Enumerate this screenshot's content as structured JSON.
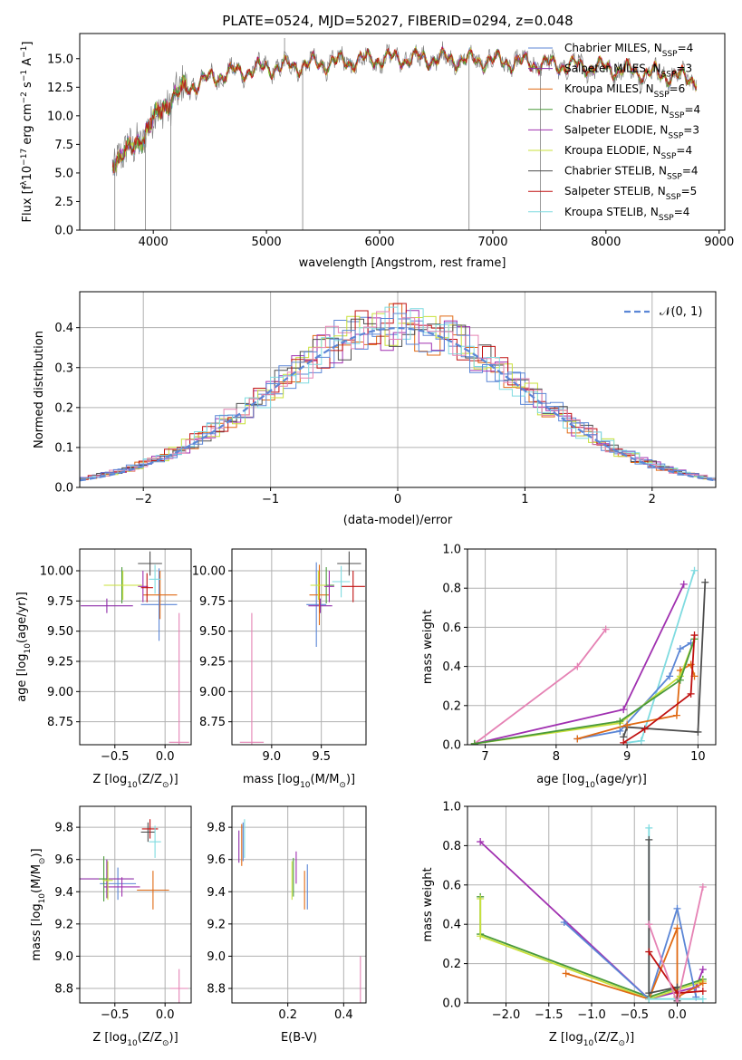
{
  "colors": {
    "chabrier_miles": "#5b86d6",
    "salpeter_miles": "#8e2da8",
    "kroupa_miles": "#e06a14",
    "chabrier_elodie": "#4a9a3a",
    "salpeter_elodie": "#a030b0",
    "kroupa_elodie": "#c8e03a",
    "chabrier_stelib": "#4d4d4d",
    "salpeter_stelib": "#c01010",
    "kroupa_stelib": "#7fdbe0",
    "pink": "#e582b4",
    "grey_spectrum": "#808080",
    "gaussian": "#5b86d6",
    "grid": "#b0b0b0"
  },
  "chart_data": [
    {
      "type": "line",
      "title": "PLATE=0524, MJD=52027, FIBERID=0294, z=0.048",
      "xlabel": "wavelength [Angstrom, rest frame]",
      "ylabel_parts": [
        "Flux [f",
        "λ",
        "10",
        "−17",
        " erg cm",
        "−2",
        " s",
        "−1",
        " A",
        "−1",
        "]"
      ],
      "xlim": [
        3350,
        9050
      ],
      "ylim": [
        0,
        17.2
      ],
      "xticks": [
        4000,
        5000,
        6000,
        7000,
        8000,
        9000
      ],
      "yticks": [
        0.0,
        2.5,
        5.0,
        7.5,
        10.0,
        12.5,
        15.0
      ],
      "grid": false,
      "legend_position": "top-right",
      "legend": [
        {
          "main": "Chabrier MILES, N",
          "sub": "SSP",
          "tail": "=4",
          "color_key": "chabrier_miles"
        },
        {
          "main": "Salpeter MILES, N",
          "sub": "SSP",
          "tail": "=3",
          "color_key": "salpeter_miles"
        },
        {
          "main": "Kroupa MILES, N",
          "sub": "SSP",
          "tail": "=6",
          "color_key": "kroupa_miles"
        },
        {
          "main": "Chabrier ELODIE, N",
          "sub": "SSP",
          "tail": "=4",
          "color_key": "chabrier_elodie"
        },
        {
          "main": "Salpeter ELODIE, N",
          "sub": "SSP",
          "tail": "=3",
          "color_key": "salpeter_elodie"
        },
        {
          "main": "Kroupa ELODIE, N",
          "sub": "SSP",
          "tail": "=4",
          "color_key": "kroupa_elodie"
        },
        {
          "main": "Chabrier STELIB, N",
          "sub": "SSP",
          "tail": "=4",
          "color_key": "chabrier_stelib"
        },
        {
          "main": "Salpeter STELIB, N",
          "sub": "SSP",
          "tail": "=5",
          "color_key": "salpeter_stelib"
        },
        {
          "main": "Kroupa STELIB, N",
          "sub": "SSP",
          "tail": "=4",
          "color_key": "kroupa_stelib"
        }
      ],
      "continuum": {
        "x": [
          3650,
          3800,
          3950,
          4100,
          4300,
          4600,
          5000,
          5500,
          6000,
          6500,
          7000,
          7500,
          8000,
          8500,
          8800
        ],
        "y": [
          6.2,
          7.0,
          8.8,
          11.0,
          12.5,
          13.6,
          14.2,
          14.6,
          15.0,
          15.0,
          14.8,
          14.5,
          14.2,
          13.6,
          13.2
        ]
      },
      "spikes": [
        {
          "x": 3660,
          "y": 0.0
        },
        {
          "x": 3930,
          "y": 0.0
        },
        {
          "x": 4155,
          "y": 0.0
        },
        {
          "x": 5320,
          "y": 0.0
        },
        {
          "x": 5160,
          "y": 16.8
        },
        {
          "x": 6790,
          "y": 0.0
        },
        {
          "x": 7420,
          "y": 0.0
        }
      ]
    },
    {
      "type": "histogram",
      "xlabel": "(data-model)/error",
      "ylabel": "Normed distribution",
      "xlim": [
        -2.5,
        2.5
      ],
      "ylim": [
        0,
        0.49
      ],
      "xticks": [
        -2,
        -1,
        0,
        1,
        2
      ],
      "yticks": [
        0.0,
        0.1,
        0.2,
        0.3,
        0.4
      ],
      "grid": true,
      "legend_position": "top-right",
      "gaussian_label": "𝒩(0, 1)",
      "bin_width": 0.1,
      "series_color_keys": [
        "chabrier_miles",
        "kroupa_miles",
        "salpeter_elodie",
        "kroupa_elodie",
        "chabrier_stelib",
        "salpeter_stelib",
        "kroupa_stelib",
        "pink",
        "chabrier_miles"
      ]
    },
    {
      "type": "scatter",
      "xlabel_parts": [
        "Z [log",
        "10",
        "(Z/Z",
        "⊙",
        ")]"
      ],
      "ylabel_parts": [
        "age  [log",
        "10",
        "(age/yr)]"
      ],
      "xlim": [
        -0.85,
        0.26
      ],
      "ylim": [
        8.56,
        10.18
      ],
      "xticks": [
        -0.5,
        0.0
      ],
      "yticks": [
        8.75,
        9.0,
        9.25,
        9.5,
        9.75,
        10.0
      ],
      "grid": true,
      "points": [
        {
          "x": -0.06,
          "xerr": 0.18,
          "y": 9.72,
          "yerr": 0.3,
          "color_key": "chabrier_miles"
        },
        {
          "x": -0.58,
          "xerr": 0.26,
          "y": 9.71,
          "yerr": 0.06,
          "color_key": "salpeter_miles"
        },
        {
          "x": -0.05,
          "xerr": 0.17,
          "y": 9.8,
          "yerr": 0.2,
          "color_key": "kroupa_miles"
        },
        {
          "x": -0.43,
          "xerr": 0.16,
          "y": 9.88,
          "yerr": 0.15,
          "color_key": "chabrier_elodie"
        },
        {
          "x": -0.22,
          "xerr": 0.05,
          "y": 9.87,
          "yerr": 0.13,
          "color_key": "salpeter_elodie"
        },
        {
          "x": -0.42,
          "xerr": 0.19,
          "y": 9.88,
          "yerr": 0.12,
          "color_key": "kroupa_elodie"
        },
        {
          "x": -0.15,
          "xerr": 0.12,
          "y": 10.06,
          "yerr": 0.1,
          "color_key": "chabrier_stelib"
        },
        {
          "x": -0.18,
          "xerr": 0.06,
          "y": 9.86,
          "yerr": 0.12,
          "color_key": "salpeter_stelib"
        },
        {
          "x": -0.1,
          "xerr": 0.06,
          "y": 9.93,
          "yerr": 0.12,
          "color_key": "kroupa_stelib"
        },
        {
          "x": 0.14,
          "xerr": 0.1,
          "y": 8.58,
          "yerr": 1.07,
          "color_key": "pink"
        }
      ]
    },
    {
      "type": "scatter",
      "xlabel_parts": [
        "mass [log",
        "10",
        "(M/M",
        "⊙",
        ")]"
      ],
      "ylabel_parts": [],
      "xlim": [
        8.6,
        9.95
      ],
      "ylim": [
        8.56,
        10.18
      ],
      "xticks": [
        9.0,
        9.5
      ],
      "yticks": [
        8.75,
        9.0,
        9.25,
        9.5,
        9.75,
        10.0
      ],
      "grid": true,
      "points": [
        {
          "x": 9.45,
          "xerr": 0.1,
          "y": 9.72,
          "yerr": 0.35,
          "color_key": "chabrier_miles"
        },
        {
          "x": 9.49,
          "xerr": 0.12,
          "y": 9.71,
          "yerr": 0.06,
          "color_key": "salpeter_miles"
        },
        {
          "x": 9.48,
          "xerr": 0.1,
          "y": 9.8,
          "yerr": 0.25,
          "color_key": "kroupa_miles"
        },
        {
          "x": 9.55,
          "xerr": 0.08,
          "y": 9.88,
          "yerr": 0.15,
          "color_key": "chabrier_elodie"
        },
        {
          "x": 9.58,
          "xerr": 0.05,
          "y": 9.87,
          "yerr": 0.13,
          "color_key": "salpeter_elodie"
        },
        {
          "x": 9.47,
          "xerr": 0.08,
          "y": 9.88,
          "yerr": 0.12,
          "color_key": "kroupa_elodie"
        },
        {
          "x": 9.78,
          "xerr": 0.12,
          "y": 10.06,
          "yerr": 0.1,
          "color_key": "chabrier_stelib"
        },
        {
          "x": 9.82,
          "xerr": 0.12,
          "y": 9.87,
          "yerr": 0.13,
          "color_key": "salpeter_stelib"
        },
        {
          "x": 9.7,
          "xerr": 0.09,
          "y": 9.91,
          "yerr": 0.13,
          "color_key": "kroupa_stelib"
        },
        {
          "x": 8.8,
          "xerr": 0.12,
          "y": 8.58,
          "yerr": 1.07,
          "color_key": "pink"
        }
      ]
    },
    {
      "type": "line",
      "xlabel_parts": [
        "age  [log",
        "10",
        "(age/yr)]"
      ],
      "ylabel": "mass weight",
      "xlim": [
        6.75,
        10.25
      ],
      "ylim": [
        0,
        1.0
      ],
      "xticks": [
        7,
        8,
        9,
        10
      ],
      "yticks": [
        0.0,
        0.2,
        0.4,
        0.6,
        0.8,
        1.0
      ],
      "grid": true,
      "series": [
        {
          "color_key": "pink",
          "x": [
            6.85,
            8.3,
            8.7
          ],
          "y": [
            0.005,
            0.4,
            0.59
          ]
        },
        {
          "color_key": "salpeter_elodie",
          "x": [
            6.85,
            8.95,
            9.8
          ],
          "y": [
            0.005,
            0.18,
            0.82
          ]
        },
        {
          "color_key": "kroupa_stelib",
          "x": [
            9.0,
            9.2,
            9.95
          ],
          "y": [
            0.01,
            0.02,
            0.89
          ]
        },
        {
          "color_key": "chabrier_stelib",
          "x": [
            8.95,
            9.0,
            10.0,
            10.1
          ],
          "y": [
            0.04,
            0.09,
            0.065,
            0.83
          ]
        },
        {
          "color_key": "chabrier_miles",
          "x": [
            8.3,
            8.9,
            9.6,
            9.75,
            9.9
          ],
          "y": [
            0.03,
            0.07,
            0.35,
            0.49,
            0.52
          ]
        },
        {
          "color_key": "kroupa_miles",
          "x": [
            8.3,
            9.0,
            9.7,
            9.75,
            9.9,
            9.95
          ],
          "y": [
            0.03,
            0.1,
            0.15,
            0.38,
            0.41,
            0.35
          ]
        },
        {
          "color_key": "kroupa_elodie",
          "x": [
            6.85,
            8.9,
            9.75,
            9.95
          ],
          "y": [
            0.005,
            0.11,
            0.35,
            0.54
          ]
        },
        {
          "color_key": "chabrier_elodie",
          "x": [
            6.85,
            8.9,
            9.75,
            9.95
          ],
          "y": [
            0.005,
            0.12,
            0.33,
            0.54
          ]
        },
        {
          "color_key": "salpeter_stelib",
          "x": [
            8.95,
            9.25,
            9.9,
            9.95
          ],
          "y": [
            0.01,
            0.08,
            0.26,
            0.56
          ]
        }
      ]
    },
    {
      "type": "scatter",
      "xlabel_parts": [
        "Z [log",
        "10",
        "(Z/Z",
        "⊙",
        ")]"
      ],
      "ylabel_parts": [
        "mass [log",
        "10",
        "(M/M",
        "⊙",
        ")]"
      ],
      "xlim": [
        -0.85,
        0.26
      ],
      "ylim": [
        8.71,
        9.93
      ],
      "xticks": [
        -0.5,
        0.0
      ],
      "yticks": [
        8.8,
        9.0,
        9.2,
        9.4,
        9.6,
        9.8
      ],
      "grid": true,
      "points": [
        {
          "x": -0.47,
          "xerr": 0.18,
          "y": 9.45,
          "yerr": 0.1,
          "color_key": "chabrier_miles"
        },
        {
          "x": -0.58,
          "xerr": 0.27,
          "y": 9.48,
          "yerr": 0.12,
          "color_key": "salpeter_miles"
        },
        {
          "x": -0.12,
          "xerr": 0.16,
          "y": 9.41,
          "yerr": 0.12,
          "color_key": "kroupa_miles"
        },
        {
          "x": -0.61,
          "xerr": 0.05,
          "y": 9.48,
          "yerr": 0.14,
          "color_key": "chabrier_elodie"
        },
        {
          "x": -0.43,
          "xerr": 0.18,
          "y": 9.43,
          "yerr": 0.06,
          "color_key": "salpeter_elodie"
        },
        {
          "x": -0.57,
          "xerr": 0.05,
          "y": 9.47,
          "yerr": 0.12,
          "color_key": "kroupa_elodie"
        },
        {
          "x": -0.17,
          "xerr": 0.07,
          "y": 9.77,
          "yerr": 0.06,
          "color_key": "chabrier_stelib"
        },
        {
          "x": -0.15,
          "xerr": 0.08,
          "y": 9.79,
          "yerr": 0.06,
          "color_key": "salpeter_stelib"
        },
        {
          "x": -0.1,
          "xerr": 0.06,
          "y": 9.71,
          "yerr": 0.1,
          "color_key": "kroupa_stelib"
        },
        {
          "x": 0.14,
          "xerr": 0.09,
          "y": 8.8,
          "yerr": 0.12,
          "color_key": "pink"
        }
      ]
    },
    {
      "type": "scatter",
      "xlabel": "E(B-V)",
      "ylabel_parts": [],
      "xlim": [
        0.0,
        0.48
      ],
      "ylim": [
        8.71,
        9.93
      ],
      "xticks": [
        0.2,
        0.4
      ],
      "yticks": [
        8.8,
        9.0,
        9.2,
        9.4,
        9.6,
        9.8
      ],
      "grid": true,
      "points": [
        {
          "x": 0.04,
          "y": 9.71,
          "yerr": 0.12,
          "color_key": "chabrier_miles"
        },
        {
          "x": 0.025,
          "y": 9.68,
          "yerr": 0.1,
          "color_key": "salpeter_miles"
        },
        {
          "x": 0.035,
          "y": 9.69,
          "yerr": 0.13,
          "color_key": "kroupa_miles"
        },
        {
          "x": 0.22,
          "y": 9.49,
          "yerr": 0.12,
          "color_key": "chabrier_elodie"
        },
        {
          "x": 0.23,
          "y": 9.55,
          "yerr": 0.1,
          "color_key": "salpeter_elodie"
        },
        {
          "x": 0.215,
          "y": 9.47,
          "yerr": 0.12,
          "color_key": "kroupa_elodie"
        },
        {
          "x": 0.045,
          "y": 9.73,
          "yerr": 0.12,
          "color_key": "kroupa_stelib"
        },
        {
          "x": 0.27,
          "y": 9.43,
          "yerr": 0.14,
          "color_key": "chabrier_miles"
        },
        {
          "x": 0.26,
          "y": 9.41,
          "yerr": 0.12,
          "color_key": "kroupa_miles"
        },
        {
          "x": 0.46,
          "y": 8.85,
          "yerr": 0.15,
          "color_key": "pink"
        }
      ]
    },
    {
      "type": "line",
      "xlabel_parts": [
        "Z [log",
        "10",
        "(Z/Z",
        "⊙",
        ")]"
      ],
      "ylabel": "mass weight",
      "xlim": [
        -2.45,
        0.45
      ],
      "ylim": [
        0,
        1.0
      ],
      "xticks": [
        -2.0,
        -1.5,
        -1.0,
        -0.5,
        0.0
      ],
      "yticks": [
        0.0,
        0.2,
        0.4,
        0.6,
        0.8,
        1.0
      ],
      "grid": true,
      "series": [
        {
          "color_key": "salpeter_elodie",
          "x": [
            -2.3,
            -0.33,
            0.22,
            0.3
          ],
          "y": [
            0.82,
            0.02,
            0.08,
            0.17
          ]
        },
        {
          "color_key": "chabrier_elodie",
          "x": [
            -2.3,
            -2.3,
            -0.33,
            0.3
          ],
          "y": [
            0.54,
            0.35,
            0.03,
            0.12
          ]
        },
        {
          "color_key": "kroupa_elodie",
          "x": [
            -2.3,
            -2.3,
            -0.33,
            0.3
          ],
          "y": [
            0.53,
            0.34,
            0.02,
            0.11
          ]
        },
        {
          "color_key": "chabrier_miles",
          "x": [
            -1.32,
            -0.33,
            0.0,
            0.22
          ],
          "y": [
            0.41,
            0.02,
            0.48,
            0.03
          ]
        },
        {
          "color_key": "kroupa_miles",
          "x": [
            -1.3,
            -0.33,
            0.0,
            0.0,
            0.3
          ],
          "y": [
            0.15,
            0.02,
            0.38,
            0.03,
            0.1
          ]
        },
        {
          "color_key": "kroupa_stelib",
          "x": [
            -0.33,
            -0.33,
            0.3
          ],
          "y": [
            0.89,
            0.02,
            0.02
          ]
        },
        {
          "color_key": "chabrier_stelib",
          "x": [
            -0.33,
            -0.33,
            0.0,
            0.0
          ],
          "y": [
            0.83,
            0.05,
            0.08,
            0.01
          ]
        },
        {
          "color_key": "salpeter_stelib",
          "x": [
            -0.33,
            0.0,
            0.3
          ],
          "y": [
            0.26,
            0.05,
            0.06
          ]
        },
        {
          "color_key": "pink",
          "x": [
            -0.33,
            0.0,
            0.3
          ],
          "y": [
            0.4,
            0.0,
            0.59
          ]
        }
      ]
    }
  ]
}
